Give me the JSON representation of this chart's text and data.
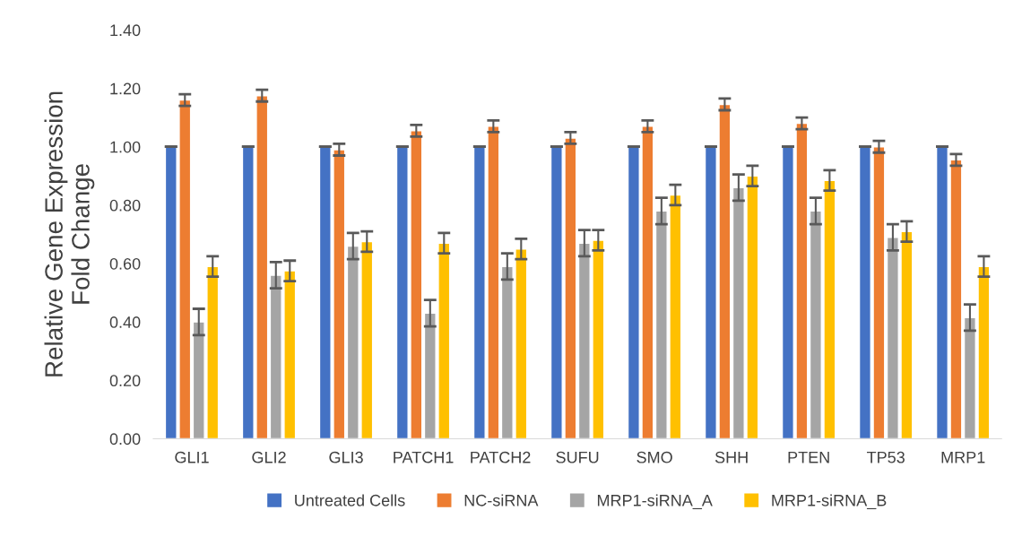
{
  "chart_data": {
    "type": "bar",
    "ylabel": "Relative Gene Expression\nFold Change",
    "categories": [
      "GLI1",
      "GLI2",
      "GLI3",
      "PATCH1",
      "PATCH2",
      "SUFU",
      "SMO",
      "SHH",
      "PTEN",
      "TP53",
      "MRP1"
    ],
    "series": [
      {
        "name": "Untreated Cells",
        "color": "#4472c4",
        "values": [
          1,
          1,
          1,
          1,
          1,
          1,
          1,
          1,
          1,
          1,
          1
        ],
        "errors": [
          0,
          0,
          0,
          0,
          0,
          0,
          0,
          0,
          0,
          0,
          0
        ]
      },
      {
        "name": "NC-siRNA",
        "color": "#ed7d31",
        "values": [
          1.16,
          1.175,
          0.99,
          1.055,
          1.07,
          1.03,
          1.07,
          1.145,
          1.08,
          1.0,
          0.955
        ],
        "errors": [
          0.02,
          0.02,
          0.02,
          0.02,
          0.02,
          0.02,
          0.02,
          0.02,
          0.02,
          0.02,
          0.02
        ]
      },
      {
        "name": "MRP1-siRNA_A",
        "color": "#a5a5a5",
        "values": [
          0.4,
          0.56,
          0.66,
          0.43,
          0.59,
          0.67,
          0.78,
          0.86,
          0.78,
          0.69,
          0.415
        ],
        "errors": [
          0.045,
          0.045,
          0.045,
          0.045,
          0.045,
          0.045,
          0.045,
          0.045,
          0.045,
          0.045,
          0.045
        ]
      },
      {
        "name": "MRP1-siRNA_B",
        "color": "#ffc000",
        "values": [
          0.59,
          0.575,
          0.675,
          0.67,
          0.65,
          0.68,
          0.835,
          0.9,
          0.885,
          0.71,
          0.59
        ],
        "errors": [
          0.035,
          0.035,
          0.035,
          0.035,
          0.035,
          0.035,
          0.035,
          0.035,
          0.035,
          0.035,
          0.035
        ]
      }
    ],
    "ylim": [
      0,
      1.4
    ],
    "yticks": [
      {
        "value": 0,
        "label": "0.00"
      },
      {
        "value": 0.2,
        "label": "0.20"
      },
      {
        "value": 0.4,
        "label": "0.40"
      },
      {
        "value": 0.6,
        "label": "0.60"
      },
      {
        "value": 0.8,
        "label": "0.80"
      },
      {
        "value": 1.0,
        "label": "1.00"
      },
      {
        "value": 1.2,
        "label": "1.20"
      },
      {
        "value": 1.4,
        "label": "1.40"
      }
    ],
    "grid": false,
    "legend": "bottom"
  }
}
